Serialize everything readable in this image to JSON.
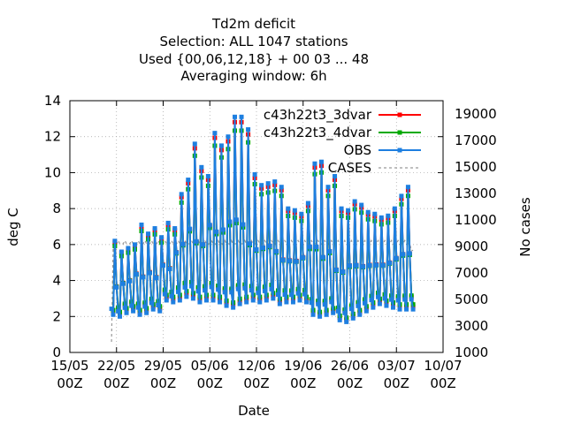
{
  "chart_data": {
    "type": "line",
    "title_lines": [
      "Td2m deficit",
      "Selection: ALL    1047 stations",
      "Used {00,06,12,18} + 00 03 ... 48",
      "Averaging window:  6h"
    ],
    "xlabel": "Date",
    "ylabel": "deg C",
    "y2label": "No cases",
    "xlim": [
      0,
      56
    ],
    "ylim": [
      0,
      14
    ],
    "y2lim": [
      1000,
      20000
    ],
    "x_ticks": [
      {
        "x": 0,
        "label": [
          "15/05",
          "00Z"
        ]
      },
      {
        "x": 7,
        "label": [
          "22/05",
          "00Z"
        ]
      },
      {
        "x": 14,
        "label": [
          "29/05",
          "00Z"
        ]
      },
      {
        "x": 21,
        "label": [
          "05/06",
          "00Z"
        ]
      },
      {
        "x": 28,
        "label": [
          "12/06",
          "00Z"
        ]
      },
      {
        "x": 35,
        "label": [
          "19/06",
          "00Z"
        ]
      },
      {
        "x": 42,
        "label": [
          "26/06",
          "00Z"
        ]
      },
      {
        "x": 49,
        "label": [
          "03/07",
          "00Z"
        ]
      },
      {
        "x": 56,
        "label": [
          "10/07",
          "00Z"
        ]
      }
    ],
    "y_ticks": [
      {
        "v": 0,
        "label": "0"
      },
      {
        "v": 2,
        "label": "2"
      },
      {
        "v": 4,
        "label": "4"
      },
      {
        "v": 6,
        "label": "6"
      },
      {
        "v": 8,
        "label": "8"
      },
      {
        "v": 10,
        "label": "10"
      },
      {
        "v": 12,
        "label": "12"
      },
      {
        "v": 14,
        "label": "14"
      }
    ],
    "y2_ticks": [
      {
        "v": 1000,
        "label": "1000"
      },
      {
        "v": 3000,
        "label": "3000"
      },
      {
        "v": 5000,
        "label": "5000"
      },
      {
        "v": 7000,
        "label": "7000"
      },
      {
        "v": 9000,
        "label": "9000"
      },
      {
        "v": 11000,
        "label": "11000"
      },
      {
        "v": 13000,
        "label": "13000"
      },
      {
        "v": 15000,
        "label": "15000"
      },
      {
        "v": 17000,
        "label": "17000"
      },
      {
        "v": 19000,
        "label": "19000"
      }
    ],
    "grid": true,
    "legend_position": "top-right",
    "x_step": 0.25,
    "obs_start": 6.25,
    "model_start": 6.5,
    "end": 51.5,
    "day_max": [
      6.2,
      5.6,
      5.8,
      6.0,
      7.1,
      6.6,
      6.9,
      6.4,
      7.2,
      6.9,
      8.8,
      9.6,
      11.6,
      10.3,
      9.8,
      12.2,
      11.5,
      12.0,
      13.1,
      13.1,
      12.4,
      9.9,
      9.3,
      9.4,
      9.5,
      9.2,
      8.0,
      7.9,
      7.7,
      8.3,
      10.5,
      10.6,
      9.2,
      9.8,
      8.0,
      7.9,
      8.4,
      8.2,
      7.8,
      7.7,
      7.5,
      7.6,
      8.0,
      8.7,
      9.2,
      9.3,
      10.5
    ],
    "day_min": [
      2.1,
      2.0,
      2.2,
      2.3,
      2.1,
      2.2,
      2.4,
      2.3,
      2.9,
      2.8,
      2.9,
      3.1,
      3.0,
      2.8,
      2.9,
      2.9,
      2.8,
      2.6,
      2.5,
      2.7,
      2.8,
      2.9,
      2.8,
      2.9,
      3.0,
      2.7,
      2.8,
      2.8,
      2.9,
      2.8,
      2.1,
      2.0,
      2.1,
      2.2,
      1.8,
      1.7,
      1.9,
      2.1,
      2.3,
      2.5,
      2.7,
      2.6,
      2.5,
      2.4,
      2.4,
      2.4,
      3.8
    ],
    "cases_level": 9200,
    "series": [
      {
        "name": "c43h22t3_3dvar",
        "color": "#ff0000",
        "marker": "plus"
      },
      {
        "name": "c43h22t3_4dvar",
        "color": "#00aa00",
        "marker": "square"
      },
      {
        "name": "OBS",
        "color": "#1e7fe0",
        "marker": "square"
      },
      {
        "name": "CASES",
        "color": "#999999",
        "marker": "dash"
      }
    ]
  }
}
